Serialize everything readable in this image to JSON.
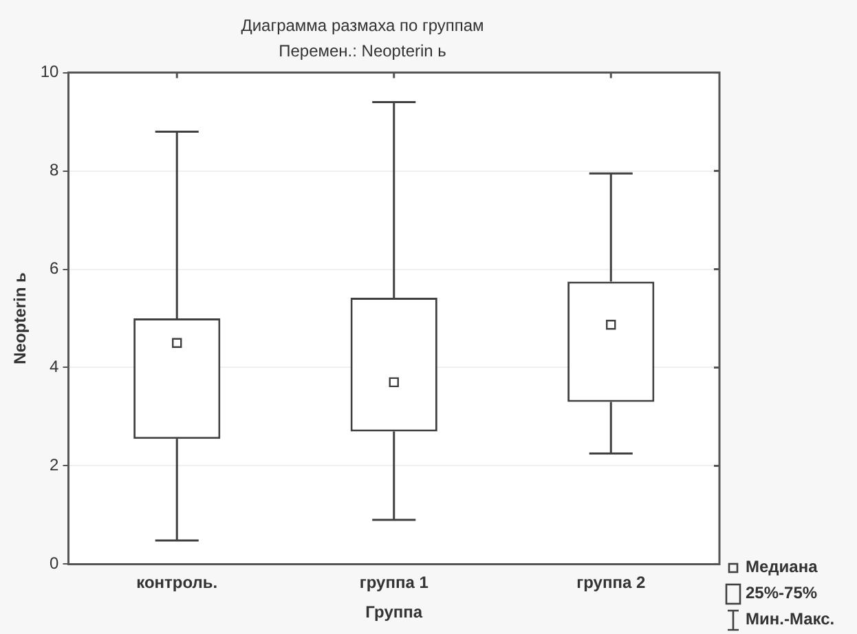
{
  "chart_data": {
    "type": "box",
    "title": "Диаграмма размаха по группам",
    "subtitle": "Перемен.: Neopterin ь",
    "xlabel": "Группа",
    "ylabel": "Neopterin ь",
    "categories": [
      "контроль.",
      "группа 1",
      "группа 2"
    ],
    "boxes": [
      {
        "low": 0.48,
        "q1": 2.55,
        "median": 4.5,
        "q3": 5.0,
        "high": 8.8
      },
      {
        "low": 0.9,
        "q1": 2.7,
        "median": 3.7,
        "q3": 5.42,
        "high": 9.4
      },
      {
        "low": 2.25,
        "q1": 3.3,
        "median": 4.87,
        "q3": 5.75,
        "high": 7.95
      }
    ],
    "color": "#404040",
    "ylim": [
      0,
      10
    ],
    "yticks": [
      0,
      2,
      4,
      6,
      8,
      10
    ],
    "grid": "y",
    "marker": "square",
    "annotations": [
      "Медиана",
      "25%-75%",
      "Мин.-Макс."
    ]
  }
}
